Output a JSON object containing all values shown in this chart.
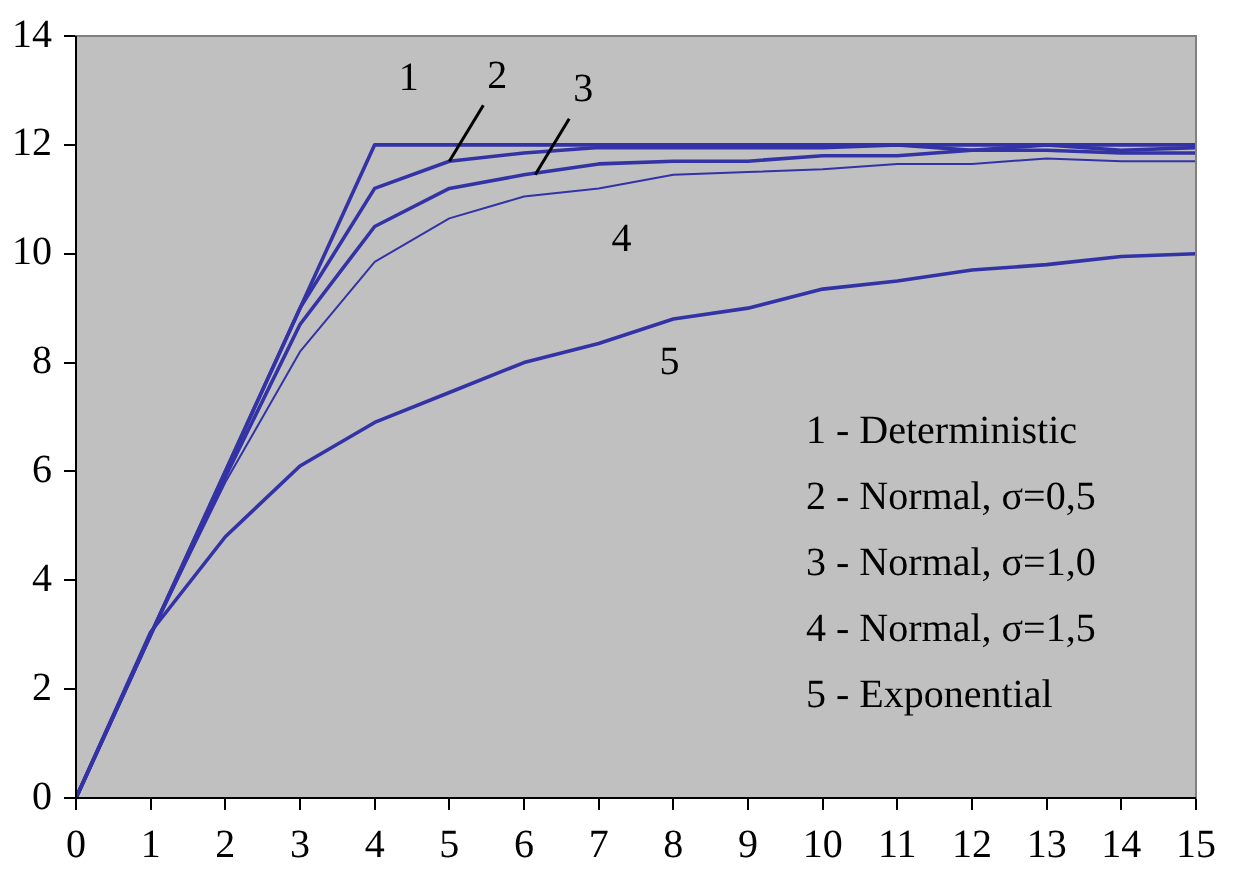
{
  "chart_data": {
    "type": "line",
    "x": [
      0,
      1,
      2,
      3,
      4,
      5,
      6,
      7,
      8,
      9,
      10,
      11,
      12,
      13,
      14,
      15
    ],
    "series": [
      {
        "color": "#3333a6",
        "values": [
          0,
          3,
          6,
          9,
          12,
          12,
          12,
          12,
          12,
          12,
          12,
          12,
          12,
          12,
          12,
          12
        ]
      },
      {
        "color": "#3333a6",
        "values": [
          0,
          3,
          6,
          9,
          11.2,
          11.7,
          11.85,
          11.95,
          11.95,
          11.95,
          11.95,
          12,
          11.9,
          12,
          11.9,
          11.95
        ]
      },
      {
        "color": "#3333a6",
        "values": [
          0,
          3,
          5.9,
          8.7,
          10.5,
          11.2,
          11.45,
          11.65,
          11.7,
          11.7,
          11.8,
          11.8,
          11.9,
          11.9,
          11.85,
          11.85
        ]
      },
      {
        "color": "#3333a6",
        "values": [
          0,
          3,
          5.8,
          8.2,
          9.85,
          10.65,
          11.05,
          11.2,
          11.45,
          11.5,
          11.55,
          11.65,
          11.65,
          11.75,
          11.7,
          11.7
        ]
      },
      {
        "color": "#3333a6",
        "values": [
          0,
          3.05,
          4.8,
          6.1,
          6.9,
          7.45,
          8,
          8.35,
          8.8,
          9,
          9.35,
          9.5,
          9.7,
          9.8,
          9.95,
          10
        ]
      }
    ],
    "xlim": [
      0,
      15
    ],
    "xticks": [
      0,
      1,
      2,
      3,
      4,
      5,
      6,
      7,
      8,
      9,
      10,
      11,
      12,
      13,
      14,
      15
    ],
    "ylim": [
      0,
      14
    ],
    "yticks": [
      0,
      2,
      4,
      6,
      8,
      10,
      12,
      14
    ],
    "grid": false,
    "legend": false,
    "marker": "none",
    "line_style": "solid",
    "annotations": [
      "1",
      {
        "text": "2",
        "x": 5,
        "y": 11.7
      },
      {
        "text": "3",
        "x": 6.15,
        "y": 11.45
      },
      "4",
      "5",
      "1 - Deterministic",
      "2 - Normal, σ=0,5",
      "3 - Normal, σ=1,0",
      "4 - Normal, σ=1,5",
      "5 - Exponential"
    ]
  }
}
